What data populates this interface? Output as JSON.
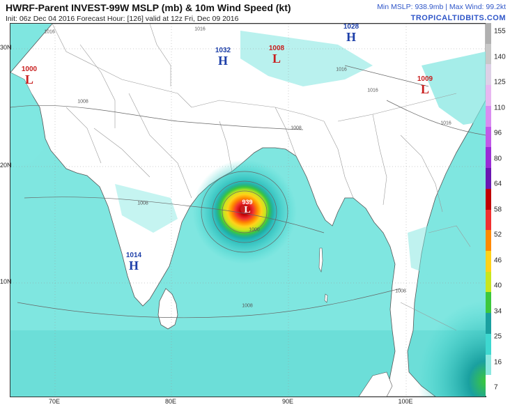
{
  "header": {
    "title": "HWRF-Parent INVEST-99W MSLP (mb) & 10m Wind Speed (kt)",
    "subtitle": "Init: 06z Dec 04 2016   Forecast Hour: [126]   valid at 12z Fri, Dec 09 2016",
    "stats": "Min MSLP: 938.9mb | Max Wind: 99.2kt",
    "brand": "TROPICALTIDBITS.COM"
  },
  "map": {
    "lat_labels": [
      "30N",
      "20N",
      "10N"
    ],
    "lon_labels": [
      "70E",
      "80E",
      "90E",
      "100E"
    ],
    "pressure_centers": [
      {
        "type": "H",
        "value": "1028"
      },
      {
        "type": "H",
        "value": "1032"
      },
      {
        "type": "L",
        "value": "1008"
      },
      {
        "type": "L",
        "value": "1000"
      },
      {
        "type": "L",
        "value": "1009"
      },
      {
        "type": "H",
        "value": "1014"
      },
      {
        "type": "L",
        "value": "939"
      }
    ],
    "isobar_labels": [
      "1016",
      "1016",
      "1008",
      "1008",
      "1008",
      "1008",
      "1000",
      "1016",
      "1016",
      "1016",
      "1008"
    ],
    "colors": {
      "ocean": "#7fe6e0",
      "land": "#ffffff",
      "coast": "#555555",
      "border": "#9a9a9a"
    }
  },
  "colorbar": {
    "labels": [
      "155",
      "140",
      "125",
      "110",
      "96",
      "80",
      "64",
      "58",
      "52",
      "46",
      "40",
      "34",
      "25",
      "16",
      "7"
    ],
    "colors": [
      "#b0b0b0",
      "#c8c8c8",
      "#ddd0e6",
      "#e8b7f0",
      "#d98cf0",
      "#c159e8",
      "#9a2bd6",
      "#6a16b0",
      "#c00000",
      "#f03030",
      "#ff8a00",
      "#ffd21a",
      "#c8e61e",
      "#3cc83c",
      "#1aa0a0",
      "#3ed8d0",
      "#8be8e0",
      "#ffffff"
    ]
  }
}
